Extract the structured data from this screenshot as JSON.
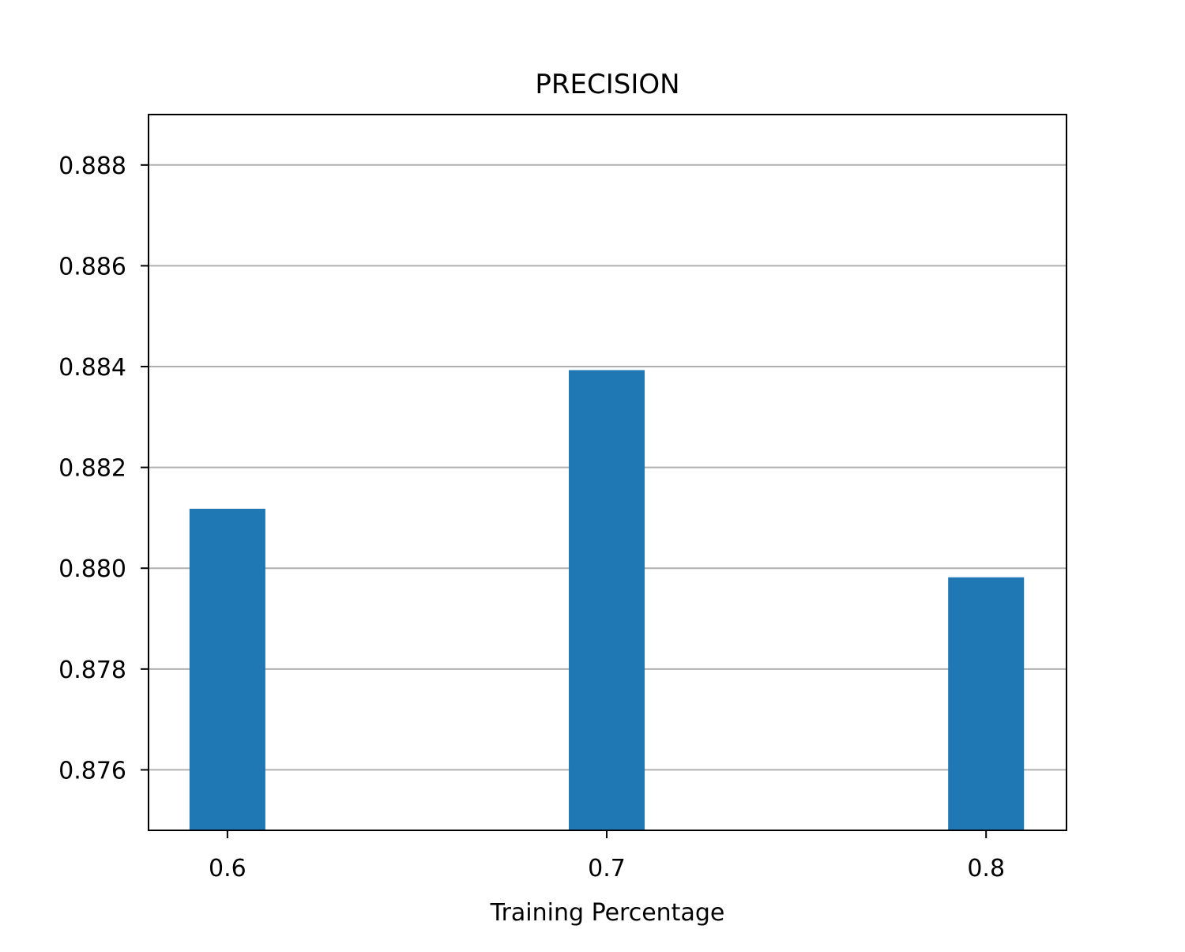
{
  "chart_data": {
    "type": "bar",
    "title": "PRECISION",
    "xlabel": "Training Percentage",
    "ylabel": "",
    "categories": [
      "0.6",
      "0.7",
      "0.8"
    ],
    "x": [
      0.6,
      0.7,
      0.8
    ],
    "values": [
      0.88118,
      0.88393,
      0.87982
    ],
    "ylim": [
      0.8748,
      0.889
    ],
    "xlim": [
      0.5792,
      0.8212
    ],
    "bar_width": 0.02,
    "yticks": [
      0.876,
      0.878,
      0.88,
      0.882,
      0.884,
      0.886,
      0.888
    ],
    "ytick_labels": [
      "0.876",
      "0.878",
      "0.880",
      "0.882",
      "0.884",
      "0.886",
      "0.888"
    ],
    "xtick_labels": [
      "0.6",
      "0.7",
      "0.8"
    ],
    "grid": "horizontal",
    "bar_color": "#1f77b4",
    "grid_color": "#b0b0b0"
  }
}
